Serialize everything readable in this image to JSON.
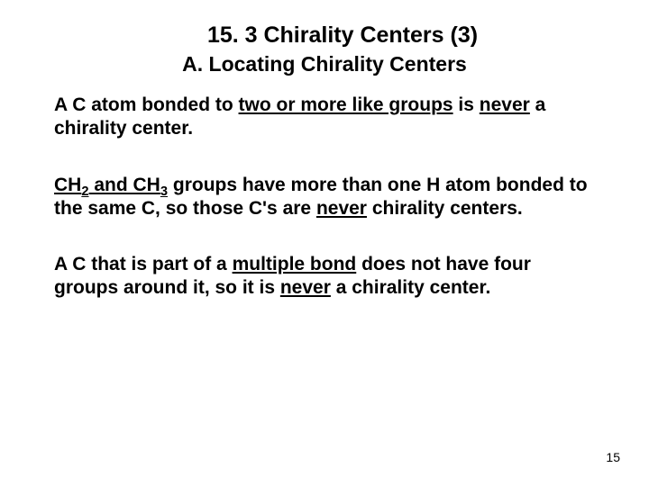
{
  "background_color": "#ffffff",
  "text_color": "#000000",
  "font_family": "Arial, Helvetica, sans-serif",
  "title": {
    "text": "15. 3 Chirality Centers (3)",
    "fontsize": 25,
    "weight": "bold",
    "align": "center"
  },
  "subtitle": {
    "text": "A. Locating Chirality Centers",
    "fontsize": 23,
    "weight": "bold",
    "align": "center"
  },
  "paragraphs": [
    {
      "fontsize": 21,
      "weight": "bold",
      "runs": [
        {
          "t": "A C atom bonded to "
        },
        {
          "t": "two or more like groups",
          "underline": true
        },
        {
          "t": " is "
        },
        {
          "t": "never",
          "underline": true
        },
        {
          "t": " a chirality center."
        }
      ]
    },
    {
      "fontsize": 21,
      "weight": "bold",
      "runs": [
        {
          "t": "CH",
          "underline": true
        },
        {
          "t": "2",
          "underline": true,
          "sub": true
        },
        {
          "t": " and CH",
          "underline": true
        },
        {
          "t": "3",
          "underline": true,
          "sub": true
        },
        {
          "t": " groups have more than one H atom bonded to the same C, so those C's are "
        },
        {
          "t": "never",
          "underline": true
        },
        {
          "t": " chirality centers."
        }
      ]
    },
    {
      "fontsize": 21,
      "weight": "bold",
      "runs": [
        {
          "t": "A C that is part of a "
        },
        {
          "t": "multiple bond",
          "underline": true
        },
        {
          "t": " does not have four groups around it, so it is "
        },
        {
          "t": "never",
          "underline": true
        },
        {
          "t": " a chirality center."
        }
      ]
    }
  ],
  "page_number": "15",
  "page_number_fontsize": 14
}
